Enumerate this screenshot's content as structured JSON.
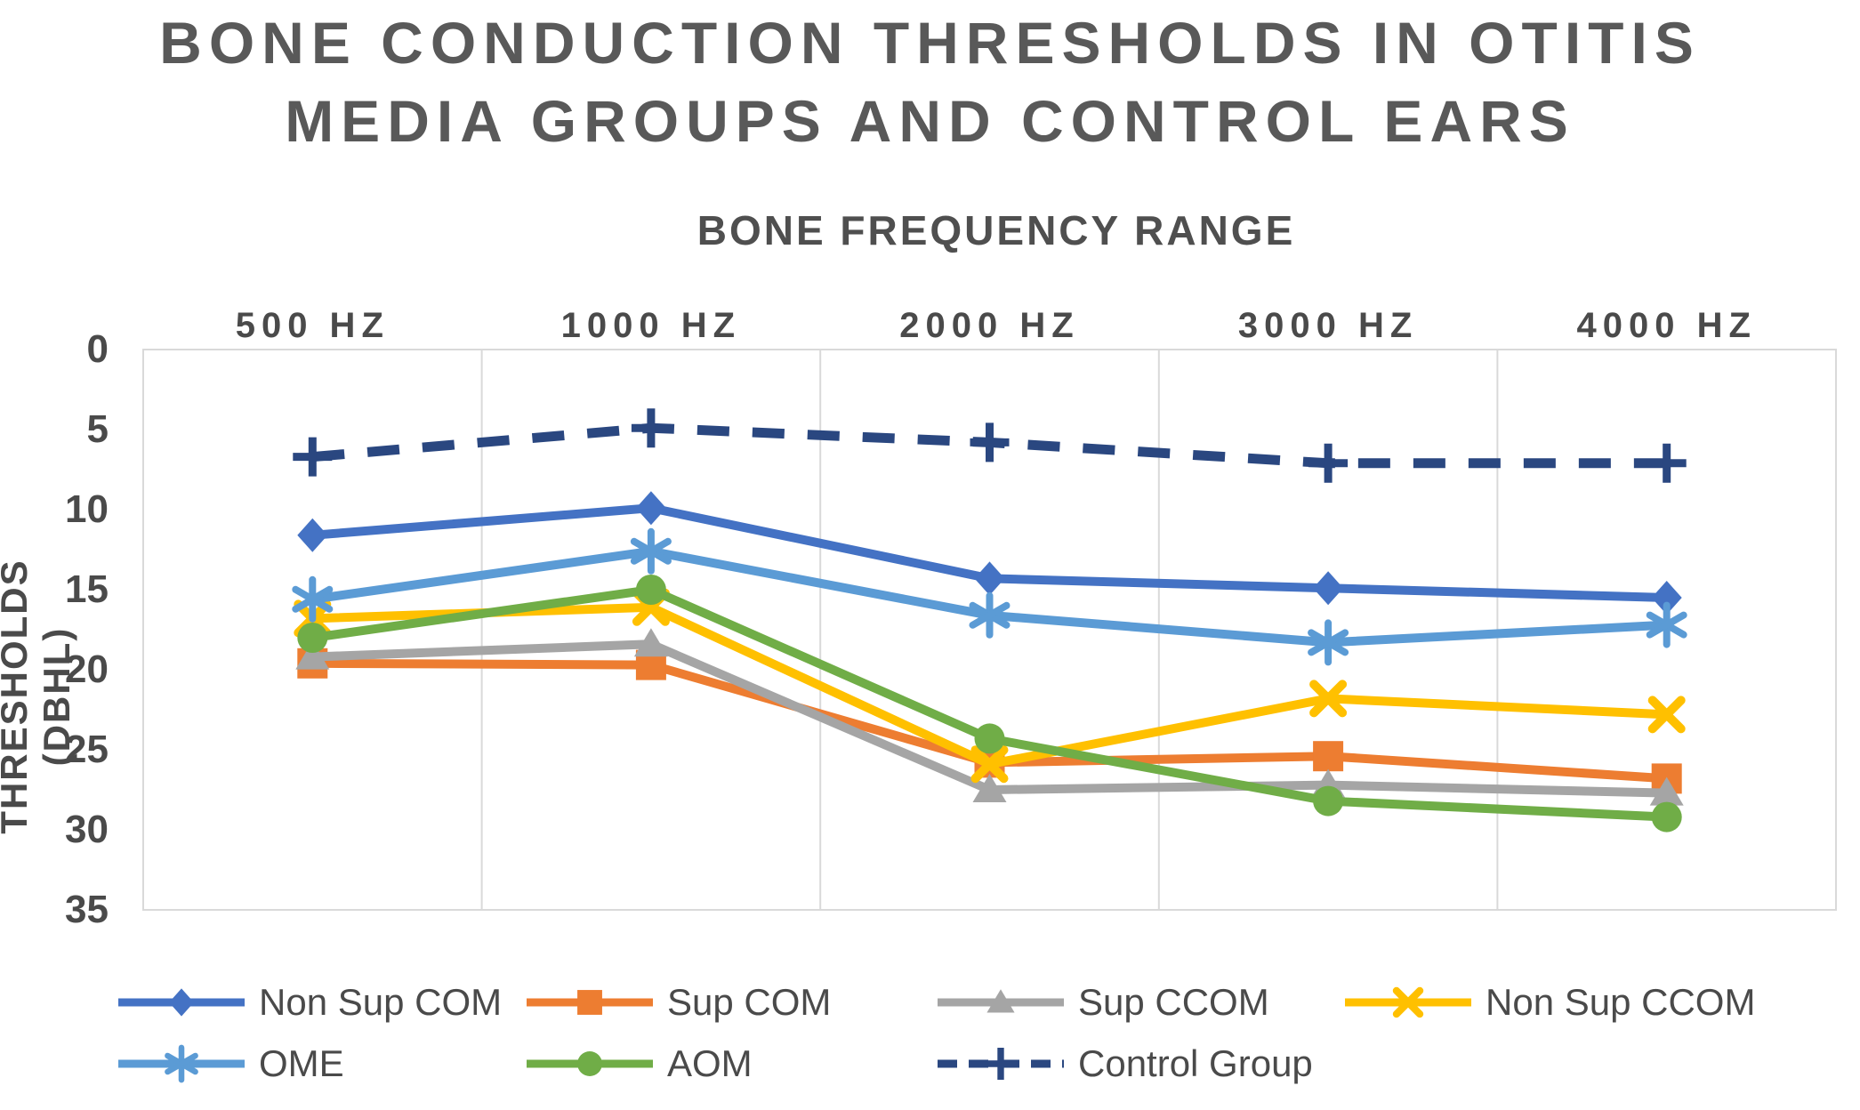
{
  "title_lines": [
    "BONE CONDUCTION THRESHOLDS IN OTITIS",
    "MEDIA GROUPS AND CONTROL EARS"
  ],
  "chart_data": {
    "type": "line",
    "title": "BONE CONDUCTION THRESHOLDS IN OTITIS MEDIA GROUPS AND CONTROL EARS",
    "x_axis_title": "BONE FREQUENCY RANGE",
    "y_axis_title": "THRESHOLDS (DBHL)",
    "categories": [
      "500 HZ",
      "1000 HZ",
      "2000 HZ",
      "3000 HZ",
      "4000 HZ"
    ],
    "y_ticks": [
      0,
      5,
      10,
      15,
      20,
      25,
      30,
      35
    ],
    "ylim": [
      0,
      35
    ],
    "y_axis_inverted": true,
    "grid": "vertical-only",
    "grid_color": "#D9D9D9",
    "legend_position": "bottom",
    "series": [
      {
        "name": "Non Sup COM",
        "color": "#4472C4",
        "marker": "diamond",
        "line": "solid",
        "values": [
          11.6,
          9.9,
          14.3,
          14.9,
          15.5
        ]
      },
      {
        "name": "Sup COM",
        "color": "#ED7D31",
        "marker": "square",
        "line": "solid",
        "values": [
          19.6,
          19.7,
          25.8,
          25.4,
          26.8
        ]
      },
      {
        "name": "Sup CCOM",
        "color": "#A5A5A5",
        "marker": "triangle",
        "line": "solid",
        "values": [
          19.2,
          18.4,
          27.5,
          27.2,
          27.7
        ]
      },
      {
        "name": "Non Sup CCOM",
        "color": "#FFC000",
        "marker": "x",
        "line": "solid",
        "values": [
          16.8,
          16.1,
          25.9,
          21.8,
          22.8
        ]
      },
      {
        "name": "OME",
        "color": "#5B9BD5",
        "marker": "asterisk",
        "line": "solid",
        "values": [
          15.6,
          12.6,
          16.6,
          18.3,
          17.2
        ]
      },
      {
        "name": "AOM",
        "color": "#70AD47",
        "marker": "circle",
        "line": "solid",
        "values": [
          18.0,
          15.0,
          24.3,
          28.2,
          29.2
        ]
      },
      {
        "name": "Control Group",
        "color": "#2A4780",
        "marker": "plus",
        "line": "dashed",
        "values": [
          6.7,
          4.9,
          5.8,
          7.1,
          7.1
        ]
      }
    ],
    "legend_rows": [
      [
        "Non Sup COM",
        "Sup COM",
        "Sup CCOM",
        "Non Sup CCOM"
      ],
      [
        "OME",
        "AOM",
        "Control Group"
      ]
    ]
  }
}
